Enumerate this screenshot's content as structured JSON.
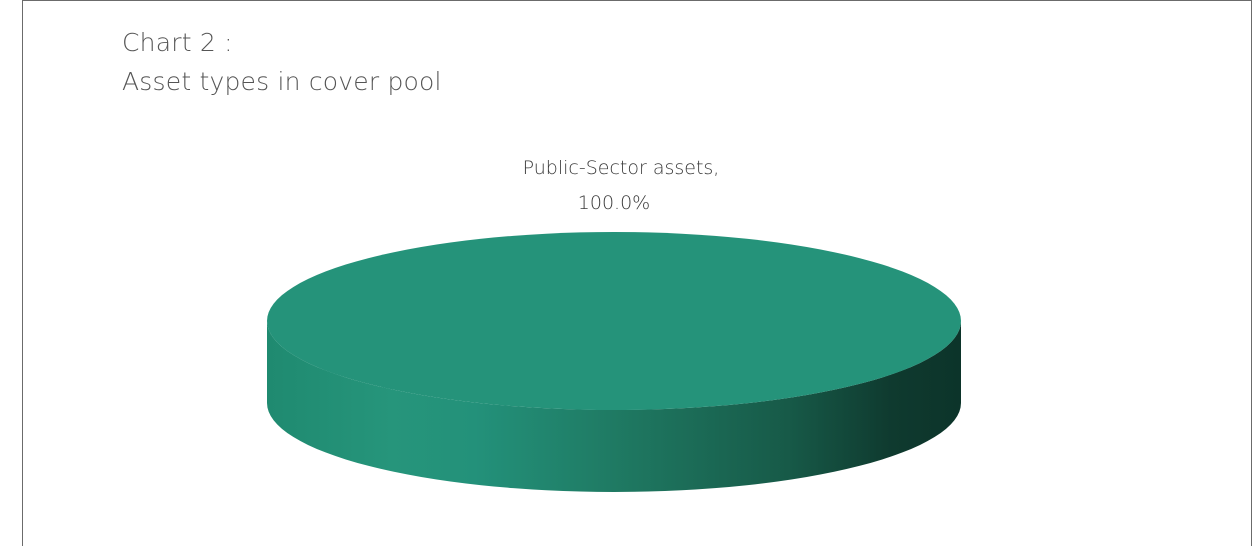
{
  "title": {
    "line1": "Chart 2 :",
    "line2": "Asset types in cover pool"
  },
  "chart_data": {
    "type": "pie",
    "style": "3d",
    "title": "Chart 2 : Asset types in cover pool",
    "slices": [
      {
        "label": "Public-Sector assets",
        "value": 100.0,
        "display": "100.0%",
        "color": "#25937a"
      }
    ],
    "data_label_lines": [
      "Public-Sector assets,",
      "100.0%"
    ],
    "legend": "none"
  },
  "colors": {
    "top_face": "#25937a",
    "side_light": "#26957b",
    "side_dark": "#0f3a2f",
    "frame": "#6b6b6b",
    "title_text": "#555555",
    "label_text": "#3a3a3a"
  }
}
